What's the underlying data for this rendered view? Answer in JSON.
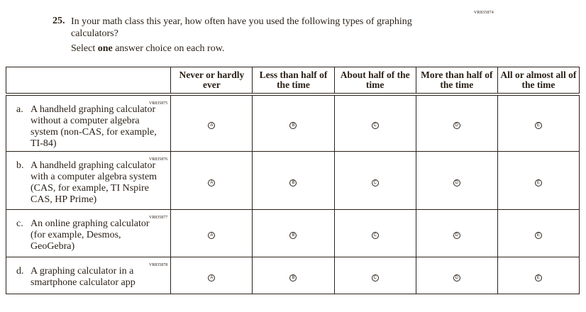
{
  "question": {
    "code": "VR835874",
    "number": "25.",
    "text": "In your math class this year, how often have you used the following types of graphing calculators?",
    "instruction_pre": "Select ",
    "instruction_bold": "one",
    "instruction_post": " answer choice on each row."
  },
  "columns": [
    "Never or hardly ever",
    "Less than half of the time",
    "About half of the time",
    "More than half of the time",
    "All or almost all of the time"
  ],
  "bubble_letters": [
    "A",
    "B",
    "C",
    "D",
    "E"
  ],
  "rows": [
    {
      "code": "VR835875",
      "letter": "a.",
      "text": "A handheld graphing calculator without a computer algebra system (non-CAS, for example, TI-84)"
    },
    {
      "code": "VR835876",
      "letter": "b.",
      "text": "A handheld graphing calculator with a computer algebra system (CAS, for example, TI Nspire CAS, HP Prime)"
    },
    {
      "code": "VR835877",
      "letter": "c.",
      "text": "An online graphing calculator (for example, Desmos, GeoGebra)"
    },
    {
      "code": "VR835878",
      "letter": "d.",
      "text": "A graphing calculator in a smartphone calculator app"
    }
  ]
}
